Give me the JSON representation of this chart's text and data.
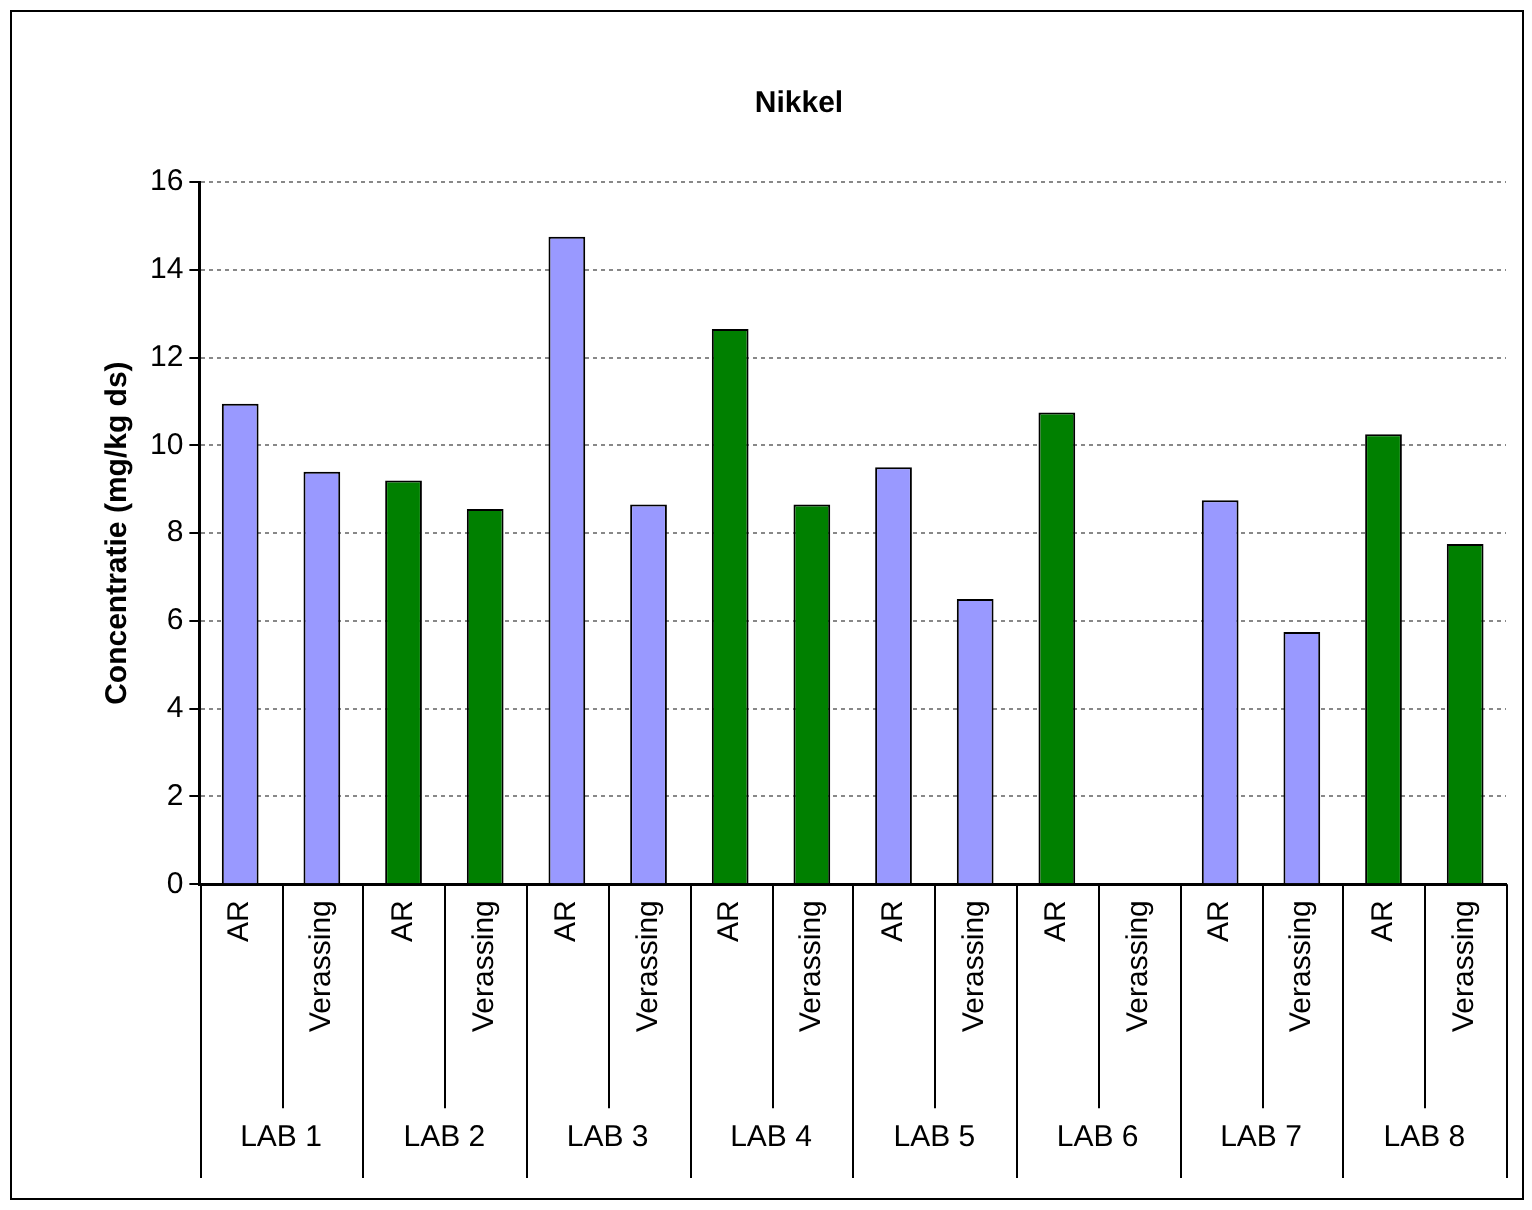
{
  "chart_data": {
    "type": "bar",
    "title": "Nikkel",
    "ylabel": "Concentratie (mg/kg ds)",
    "categories": [
      "AR",
      "Verassing",
      "AR",
      "Verassing",
      "AR",
      "Verassing",
      "AR",
      "Verassing",
      "AR",
      "Verassing",
      "AR",
      "Verassing",
      "AR",
      "Verassing",
      "AR",
      "Verassing"
    ],
    "values": [
      10.95,
      9.4,
      9.2,
      8.55,
      14.75,
      8.65,
      12.65,
      8.65,
      9.5,
      6.5,
      10.75,
      null,
      8.75,
      5.75,
      10.25,
      7.75
    ],
    "colors": [
      "#9999ff",
      "#9999ff",
      "#008000",
      "#008000",
      "#9999ff",
      "#9999ff",
      "#008000",
      "#008000",
      "#9999ff",
      "#9999ff",
      "#008000",
      "#008000",
      "#9999ff",
      "#9999ff",
      "#008000",
      "#008000"
    ],
    "ylim": [
      0,
      16
    ],
    "yticks": [
      0,
      2,
      4,
      6,
      8,
      10,
      12,
      14,
      16
    ],
    "grid": "y",
    "legend": false,
    "annotations": [
      "LAB 1",
      "LAB 2",
      "LAB 3",
      "LAB 4",
      "LAB 5",
      "LAB 6",
      "LAB 7",
      "LAB 8"
    ]
  }
}
